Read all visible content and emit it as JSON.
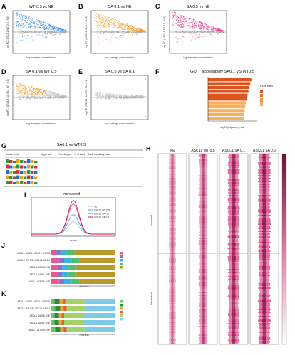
{
  "colors": {
    "wt": "#2f86d6",
    "sa01": "#f0951f",
    "sa05": "#e23b8d",
    "grey": "#b9b9b9",
    "heat": "#d4337a",
    "go_high": "#d9541e",
    "go_low": "#f6b15c"
  },
  "panels": {
    "A": {
      "label": "A",
      "title": "WT 0.5 vs NE",
      "count_up": "",
      "count_down": "",
      "xlabel": "log average concentration",
      "ylabel": "log FC (ASCL1 WT 0.5 - NE)"
    },
    "B": {
      "label": "B",
      "title": "SA 0.1 vs NE",
      "count_up": "",
      "count_down": "",
      "xlabel": "log average concentration",
      "ylabel": "log FC (ASCL1 SA 0.1 - NE)"
    },
    "C": {
      "label": "C",
      "title": "SA 0.5 vs NE",
      "count_up": "",
      "count_down": "",
      "xlabel": "log average concentration",
      "ylabel": "log FC (ASCL1 SA 0.5 - NE)"
    },
    "D": {
      "label": "D",
      "title": "SA 0.1 vs WT 0.5",
      "count_up": "",
      "count_down": "",
      "xlabel": "log average concentration",
      "ylabel": "log FC (ASCL1 SA 0.1 - WT 0.5)"
    },
    "E": {
      "label": "E",
      "title": "SA 0.5 vs SA 0.1",
      "count_up": "0",
      "count_down": "0",
      "xlabel": "log average concentration",
      "ylabel": "log FC (ASCL1 SA 0.5 - SA 0.1)"
    },
    "F": {
      "label": "F",
      "title": "GO: ↑ accessibility SA0.1 VS WT0.5",
      "xlabel": "-log10(adjusted p-val)",
      "legend_title": "Gene Ratio"
    },
    "G": {
      "label": "G",
      "title": "SA0.1 vs WT0.5",
      "headers": [
        "Known motif",
        "log p-val",
        "% of targets",
        "% of bkgd",
        "Motif matching factor"
      ]
    },
    "H": {
      "label": "H",
      "columns": [
        "NE",
        "ASCL1 WT 0.5",
        "ASCL1 SA 0.1",
        "ASCL1 SA 0.5"
      ],
      "row_label_top": "Increased",
      "row_label_bottom": "Decreased"
    },
    "I": {
      "label": "I",
      "title": "Increased",
      "series": [
        "NE",
        "ASCL1 WT 0.5",
        "ASCL1 SA 0.1",
        "ASCL1 SA 0.5"
      ],
      "xlabel": "center"
    },
    "J": {
      "label": "J",
      "rows": [
        "↑ ASCL1 SA 0.1 / ASCL1 WT 0.5",
        "↑ ASCL1 WT 0.5 / ASCL1 SA 0.1",
        "↑ ASCL1 SA 0.5 / NE",
        "↑ ASCL1 SA 0.1 / NE",
        "↑ ASCL1 WT 0.5 / NE"
      ],
      "xlabel": "Fraction"
    },
    "K": {
      "label": "K",
      "rows": [
        "↑ ASCL1 SA 0.1 / ASCL1 WT 0.5",
        "↑ ASCL1 WT 0.5 / ASCL1 SA 0.1",
        "↑ ASCL1 SA 0.5 / NE",
        "↑ ASCL1 SA 0.1 / NE",
        "↑ ASCL1 WT 0.5 / NE"
      ],
      "xlabel": "Fraction"
    }
  },
  "chart_data": [
    {
      "panel": "A",
      "type": "scatter",
      "description": "MA plot",
      "color": "#2f86d6",
      "xlabel": "log average concentration",
      "ylabel": "log FC (ASCL1 WT 0.5 - NE)"
    },
    {
      "panel": "B",
      "type": "scatter",
      "description": "MA plot",
      "color": "#f0951f",
      "xlabel": "log average concentration",
      "ylabel": "log FC (ASCL1 SA 0.1 - NE)"
    },
    {
      "panel": "C",
      "type": "scatter",
      "description": "MA plot",
      "color": "#e23b8d",
      "xlabel": "log average concentration",
      "ylabel": "log FC (ASCL1 SA 0.5 - NE)"
    },
    {
      "panel": "D",
      "type": "scatter",
      "description": "MA plot",
      "color": "#f0951f",
      "xlabel": "log average concentration",
      "ylabel": "log FC (ASCL1 SA 0.1 - WT 0.5)"
    },
    {
      "panel": "E",
      "type": "scatter",
      "description": "MA plot",
      "color": "#b9b9b9",
      "xlabel": "log average concentration",
      "ylabel": "log FC (ASCL1 SA 0.5 - SA 0.1)",
      "up": 0,
      "down": 0
    },
    {
      "panel": "F",
      "type": "bar",
      "orientation": "horizontal",
      "xlabel": "-log10(adjusted p-val)",
      "categories": [
        "",
        "",
        "",
        "",
        "",
        "",
        "",
        "",
        "",
        "",
        ""
      ],
      "values": [
        2.3,
        2.25,
        2.2,
        2.15,
        2.1,
        2.05,
        2.0,
        1.98,
        1.95,
        1.92,
        1.9
      ],
      "gene_ratio": [
        0.044,
        0.043,
        0.042,
        0.041,
        0.04,
        0.038,
        0.036,
        0.034,
        0.032,
        0.03,
        0.028
      ],
      "xlim": [
        0,
        2.5
      ],
      "legend_title": "Gene Ratio"
    },
    {
      "panel": "I",
      "type": "line",
      "title": "Increased",
      "series": [
        {
          "name": "NE",
          "color": "#9ad0f0",
          "peak": 0.35
        },
        {
          "name": "ASCL1 WT 0.5",
          "color": "#3aa5e8",
          "peak": 0.55
        },
        {
          "name": "ASCL1 SA 0.1",
          "color": "#e84a7a",
          "peak": 0.85
        },
        {
          "name": "ASCL1 SA 0.5",
          "color": "#c1185b",
          "peak": 0.95
        }
      ]
    },
    {
      "panel": "J",
      "type": "bar",
      "orientation": "horizontal",
      "stacked": true,
      "xlabel": "Fraction",
      "categories": [
        "↑ ASCL1 SA 0.1 / ASCL1 WT 0.5",
        "↑ ASCL1 WT 0.5 / ASCL1 SA 0.1",
        "↑ ASCL1 SA 0.5 / NE",
        "↑ ASCL1 SA 0.1 / NE",
        "↑ ASCL1 WT 0.5 / NE"
      ],
      "series": [
        {
          "color": "#e85a8a",
          "values": [
            0.08,
            0.12,
            0.1,
            0.1,
            0.12
          ]
        },
        {
          "color": "#8a6fd0",
          "values": [
            0.06,
            0.08,
            0.07,
            0.07,
            0.08
          ]
        },
        {
          "color": "#39b4e0",
          "values": [
            0.1,
            0.12,
            0.1,
            0.1,
            0.12
          ]
        },
        {
          "color": "#4fbf6a",
          "values": [
            0.12,
            0.12,
            0.1,
            0.1,
            0.12
          ]
        },
        {
          "color": "#b89a2a",
          "values": [
            0.64,
            0.56,
            0.63,
            0.63,
            0.56
          ]
        }
      ],
      "xlim": [
        0,
        1
      ]
    },
    {
      "panel": "K",
      "type": "bar",
      "orientation": "horizontal",
      "stacked": true,
      "xlabel": "Fraction",
      "categories": [
        "↑ ASCL1 SA 0.1 / ASCL1 WT 0.5",
        "↑ ASCL1 WT 0.5 / ASCL1 SA 0.1",
        "↑ ASCL1 SA 0.5 / NE",
        "↑ ASCL1 SA 0.1 / NE",
        "↑ ASCL1 WT 0.5 / NE"
      ],
      "series": [
        {
          "color": "#6fc46a",
          "values": [
            0.05,
            0.06,
            0.05,
            0.05,
            0.06
          ]
        },
        {
          "color": "#2e8b3e",
          "values": [
            0.08,
            0.08,
            0.07,
            0.07,
            0.08
          ]
        },
        {
          "color": "#f4a52a",
          "values": [
            0.05,
            0.05,
            0.04,
            0.04,
            0.05
          ]
        },
        {
          "color": "#e8602a",
          "values": [
            0.04,
            0.05,
            0.04,
            0.04,
            0.05
          ]
        },
        {
          "color": "#a1d36a",
          "values": [
            0.3,
            0.28,
            0.3,
            0.3,
            0.28
          ]
        },
        {
          "color": "#7ecbe8",
          "values": [
            0.48,
            0.48,
            0.5,
            0.5,
            0.48
          ]
        }
      ],
      "xlim": [
        0,
        1
      ]
    }
  ]
}
